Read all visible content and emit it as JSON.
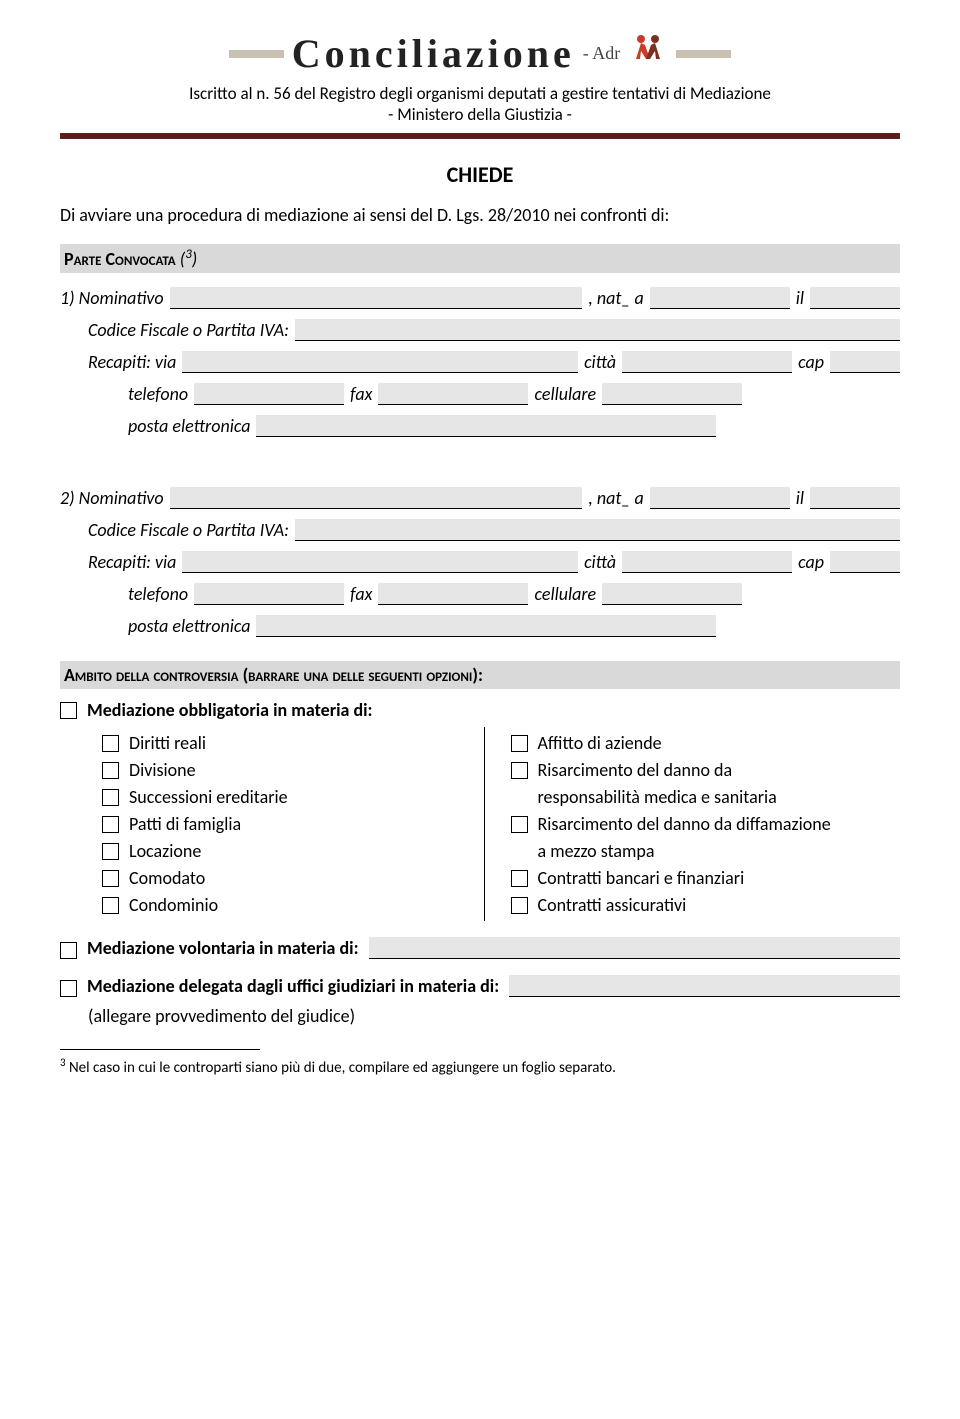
{
  "header": {
    "logo_main": "Conciliazione",
    "logo_sub": "- Adr",
    "reg_line1": "Iscritto al n. 56 del Registro degli organismi deputati a gestire tentativi di Mediazione",
    "reg_line2": "- Ministero della Giustizia -"
  },
  "title": "CHIEDE",
  "intro": "Di avviare una procedura di mediazione ai sensi del D. Lgs. 28/2010 nei confronti di:",
  "section_convocata": {
    "heading": "Parte Convocata",
    "note_ref": "3",
    "note_paren": "( )"
  },
  "labels": {
    "nominativo1": "1) Nominativo",
    "nominativo2": "2) Nominativo",
    "nat_a": ", nat_ a",
    "il": "il",
    "cf": "Codice Fiscale o Partita IVA:",
    "recapiti": "Recapiti: via",
    "citta": "città",
    "cap": "cap",
    "telefono": "telefono",
    "fax": "fax",
    "cellulare": "cellulare",
    "posta": "posta elettronica"
  },
  "section_ambito": "Ambito della controversia (barrare una delle seguenti opzioni):",
  "mediazione_obbl": "Mediazione obbligatoria in materia di:",
  "options_left": [
    "Diritti reali",
    "Divisione",
    "Successioni ereditarie",
    "Patti di famiglia",
    "Locazione",
    "Comodato",
    "Condominio"
  ],
  "options_right": [
    {
      "label": "Affitto di aziende",
      "chk": true
    },
    {
      "label": "Risarcimento del danno da",
      "chk": true
    },
    {
      "label": "responsabilità medica e sanitaria",
      "chk": false
    },
    {
      "label": "Risarcimento del danno da diffamazione",
      "chk": true
    },
    {
      "label": "a mezzo stampa",
      "chk": false
    },
    {
      "label": "Contratti bancari e finanziari",
      "chk": true
    },
    {
      "label": "Contratti assicurativi",
      "chk": true
    }
  ],
  "mediazione_vol": "Mediazione volontaria in materia di:",
  "mediazione_del": "Mediazione delegata dagli uffici giudiziari in materia di:",
  "allegare": "(allegare provvedimento del giudice)",
  "footnote": {
    "ref": "3",
    "text": " Nel caso in cui le controparti siano più di due, compilare ed aggiungere un foglio separato."
  },
  "colors": {
    "rule": "#5b1d1d",
    "field_bg": "#e6e6e6",
    "section_bg": "#d9d9d9",
    "icon_red": "#c83c28",
    "icon_dark": "#7b3020"
  }
}
